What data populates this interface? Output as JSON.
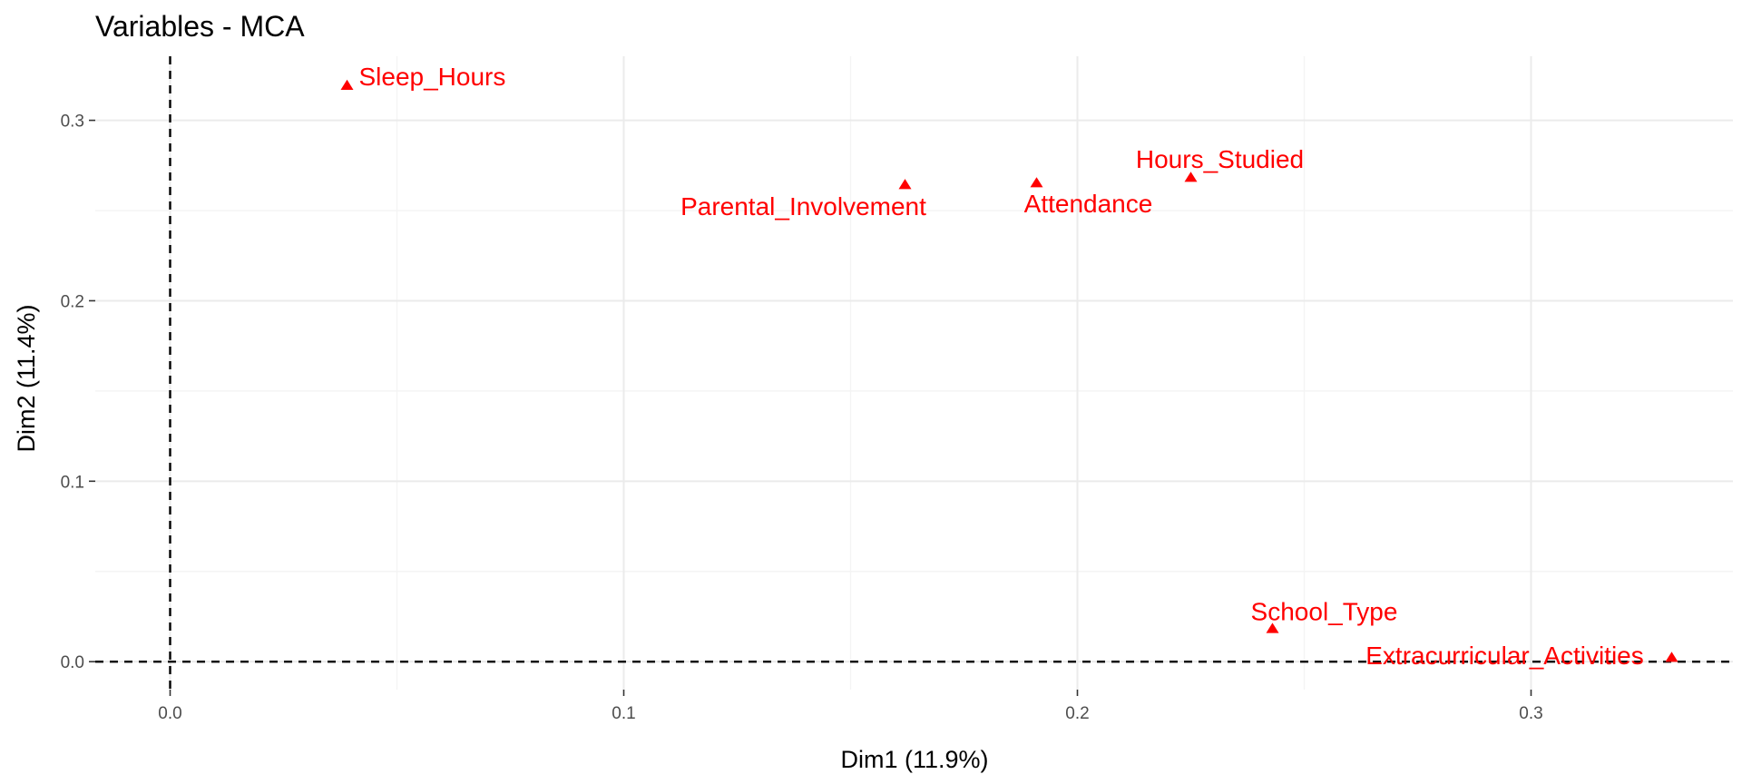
{
  "chart_data": {
    "type": "scatter",
    "title": "Variables - MCA",
    "xlabel": "Dim1 (11.9%)",
    "ylabel": "Dim2 (11.4%)",
    "xlim": [
      -0.0165,
      0.3445
    ],
    "ylim": [
      -0.0155,
      0.3355
    ],
    "x_ticks": [
      0.0,
      0.1,
      0.2,
      0.3
    ],
    "y_ticks": [
      0.0,
      0.1,
      0.2,
      0.3
    ],
    "x_tick_labels": [
      "0.0",
      "0.1",
      "0.2",
      "0.3"
    ],
    "y_tick_labels": [
      "0.0",
      "0.1",
      "0.2",
      "0.3"
    ],
    "grid": true,
    "reference_lines": {
      "x": 0,
      "y": 0
    },
    "point_color": "#ff0000",
    "marker": "triangle",
    "points": [
      {
        "label": "Sleep_Hours",
        "x": 0.039,
        "y": 0.319
      },
      {
        "label": "Parental_Involvement",
        "x": 0.162,
        "y": 0.264
      },
      {
        "label": "Attendance",
        "x": 0.191,
        "y": 0.265
      },
      {
        "label": "Hours_Studied",
        "x": 0.225,
        "y": 0.268
      },
      {
        "label": "School_Type",
        "x": 0.243,
        "y": 0.018
      },
      {
        "label": "Extracurricular_Activities",
        "x": 0.331,
        "y": 0.002
      }
    ]
  }
}
